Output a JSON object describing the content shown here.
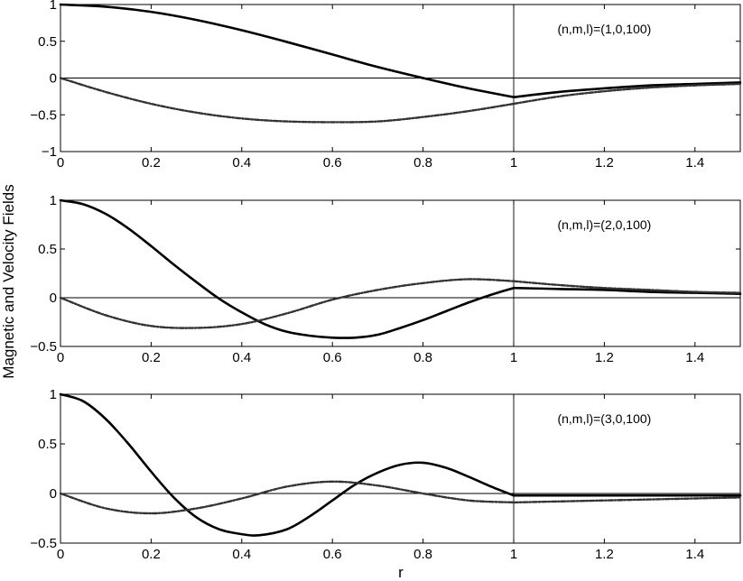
{
  "figure": {
    "ylabel": "Magnetic and Velocity Fields",
    "xlabel": "r"
  },
  "chart_data": [
    {
      "type": "line",
      "annotation": "(n,m,l)=(1,0,100)",
      "xlim": [
        0,
        1.5
      ],
      "ylim": [
        -1,
        1
      ],
      "xticks": [
        0,
        0.2,
        0.4,
        0.6,
        0.8,
        1,
        1.2,
        1.4
      ],
      "xtick_labels": [
        "0",
        "0.2",
        "0.4",
        "0.6",
        "0.8",
        "1",
        "1.2",
        "1.4"
      ],
      "yticks": [
        -1,
        -0.5,
        0,
        0.5,
        1
      ],
      "ytick_labels": [
        "−1",
        "−0.5",
        "0",
        "0.5",
        "1"
      ],
      "series": [
        {
          "style": "solid",
          "x": [
            0,
            0.1,
            0.2,
            0.3,
            0.4,
            0.5,
            0.6,
            0.7,
            0.8,
            0.9,
            1.0,
            1.1,
            1.2,
            1.3,
            1.4,
            1.5
          ],
          "y": [
            1.0,
            0.97,
            0.9,
            0.79,
            0.65,
            0.49,
            0.32,
            0.15,
            0.0,
            -0.14,
            -0.26,
            -0.19,
            -0.14,
            -0.1,
            -0.08,
            -0.06
          ]
        },
        {
          "style": "dashdot",
          "x": [
            0,
            0.1,
            0.2,
            0.3,
            0.4,
            0.5,
            0.6,
            0.7,
            0.8,
            0.9,
            1.0,
            1.1,
            1.2,
            1.3,
            1.4,
            1.5
          ],
          "y": [
            0.0,
            -0.19,
            -0.35,
            -0.47,
            -0.55,
            -0.59,
            -0.6,
            -0.59,
            -0.53,
            -0.45,
            -0.35,
            -0.25,
            -0.18,
            -0.13,
            -0.1,
            -0.08
          ]
        }
      ]
    },
    {
      "type": "line",
      "annotation": "(n,m,l)=(2,0,100)",
      "xlim": [
        0,
        1.5
      ],
      "ylim": [
        -0.5,
        1
      ],
      "xticks": [
        0,
        0.2,
        0.4,
        0.6,
        0.8,
        1,
        1.2,
        1.4
      ],
      "xtick_labels": [
        "0",
        "0.2",
        "0.4",
        "0.6",
        "0.8",
        "1",
        "1.2",
        "1.4"
      ],
      "yticks": [
        -0.5,
        0,
        0.5,
        1
      ],
      "ytick_labels": [
        "−0.5",
        "0",
        "0.5",
        "1"
      ],
      "series": [
        {
          "style": "solid",
          "x": [
            0,
            0.05,
            0.1,
            0.15,
            0.2,
            0.25,
            0.3,
            0.35,
            0.4,
            0.45,
            0.5,
            0.55,
            0.6,
            0.65,
            0.7,
            0.75,
            0.8,
            0.85,
            0.9,
            0.95,
            1.0,
            1.1,
            1.2,
            1.3,
            1.4,
            1.5
          ],
          "y": [
            1.0,
            0.96,
            0.86,
            0.71,
            0.53,
            0.34,
            0.16,
            -0.01,
            -0.15,
            -0.27,
            -0.35,
            -0.39,
            -0.41,
            -0.41,
            -0.38,
            -0.31,
            -0.23,
            -0.14,
            -0.05,
            0.03,
            0.1,
            0.09,
            0.08,
            0.06,
            0.05,
            0.04
          ]
        },
        {
          "style": "dashdot",
          "x": [
            0,
            0.1,
            0.2,
            0.3,
            0.4,
            0.5,
            0.6,
            0.7,
            0.8,
            0.9,
            1.0,
            1.1,
            1.2,
            1.3,
            1.4,
            1.5
          ],
          "y": [
            0.0,
            -0.18,
            -0.29,
            -0.31,
            -0.27,
            -0.16,
            -0.02,
            0.08,
            0.15,
            0.19,
            0.17,
            0.13,
            0.1,
            0.08,
            0.06,
            0.05
          ]
        }
      ]
    },
    {
      "type": "line",
      "annotation": "(n,m,l)=(3,0,100)",
      "xlim": [
        0,
        1.5
      ],
      "ylim": [
        -0.5,
        1
      ],
      "xticks": [
        0,
        0.2,
        0.4,
        0.6,
        0.8,
        1,
        1.2,
        1.4
      ],
      "xtick_labels": [
        "0",
        "0.2",
        "0.4",
        "0.6",
        "0.8",
        "1",
        "1.2",
        "1.4"
      ],
      "yticks": [
        -0.5,
        0,
        0.5,
        1
      ],
      "ytick_labels": [
        "−0.5",
        "0",
        "0.5",
        "1"
      ],
      "series": [
        {
          "style": "solid",
          "x": [
            0,
            0.05,
            0.1,
            0.15,
            0.2,
            0.25,
            0.3,
            0.35,
            0.4,
            0.44,
            0.5,
            0.55,
            0.6,
            0.65,
            0.7,
            0.75,
            0.8,
            0.85,
            0.9,
            0.95,
            1.0,
            1.1,
            1.2,
            1.3,
            1.4,
            1.5
          ],
          "y": [
            1.0,
            0.93,
            0.75,
            0.5,
            0.22,
            -0.04,
            -0.24,
            -0.36,
            -0.41,
            -0.42,
            -0.36,
            -0.23,
            -0.07,
            0.09,
            0.21,
            0.29,
            0.31,
            0.26,
            0.17,
            0.07,
            -0.02,
            -0.02,
            -0.02,
            -0.02,
            -0.02,
            -0.02
          ]
        },
        {
          "style": "dashdot",
          "x": [
            0,
            0.1,
            0.2,
            0.3,
            0.4,
            0.5,
            0.6,
            0.7,
            0.8,
            0.9,
            1.0,
            1.1,
            1.2,
            1.3,
            1.4,
            1.5
          ],
          "y": [
            0.0,
            -0.15,
            -0.2,
            -0.15,
            -0.05,
            0.07,
            0.12,
            0.08,
            0.0,
            -0.07,
            -0.09,
            -0.08,
            -0.07,
            -0.06,
            -0.05,
            -0.04
          ]
        }
      ]
    }
  ]
}
